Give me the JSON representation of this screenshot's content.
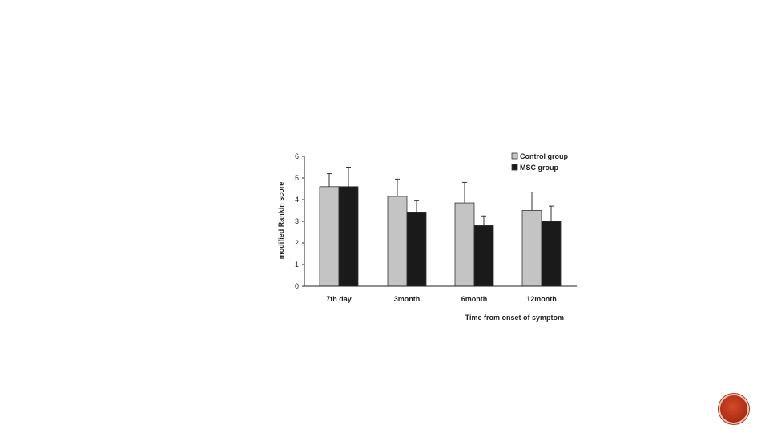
{
  "chart_data": {
    "type": "bar",
    "categories": [
      "7th day",
      "3month",
      "6month",
      "12month"
    ],
    "series": [
      {
        "name": "Control group",
        "values": [
          4.6,
          4.15,
          3.85,
          3.5
        ],
        "errors": [
          0.6,
          0.8,
          0.95,
          0.85
        ]
      },
      {
        "name": "MSC group",
        "values": [
          4.6,
          3.4,
          2.8,
          3.0
        ],
        "errors": [
          0.9,
          0.55,
          0.45,
          0.7
        ]
      }
    ],
    "title": "",
    "xlabel": "Time from onset of symptom",
    "ylabel": "modified Rankin score",
    "ylim": [
      0,
      6
    ],
    "yticks": [
      "0",
      "1",
      "2",
      "3",
      "4",
      "5",
      "6"
    ],
    "legend_position": "top-right",
    "grid": false
  },
  "colors": {
    "control": "#c4c4c4",
    "msc": "#1a1a1a",
    "axis": "#222222",
    "badge": "#b23016"
  }
}
